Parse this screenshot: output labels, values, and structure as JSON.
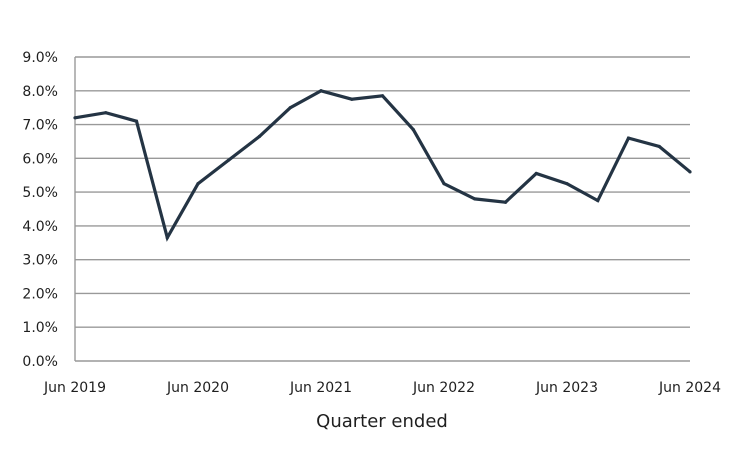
{
  "chart_data": {
    "type": "line",
    "title": "",
    "xlabel": "Quarter ended",
    "ylabel": "",
    "ylim": [
      0,
      9
    ],
    "grid": true,
    "legend": "none",
    "line_color": "#243444",
    "grid_color": "#999999",
    "y_ticks": [
      "0.0%",
      "1.0%",
      "2.0%",
      "3.0%",
      "4.0%",
      "5.0%",
      "6.0%",
      "7.0%",
      "8.0%",
      "9.0%"
    ],
    "x_ticks": [
      "Jun 2019",
      "Jun 2020",
      "Jun 2021",
      "Jun 2022",
      "Jun 2023",
      "Jun 2024"
    ],
    "categories": [
      "Jun 2019",
      "Sep 2019",
      "Dec 2019",
      "Mar 2020",
      "Jun 2020",
      "Sep 2020",
      "Dec 2020",
      "Mar 2021",
      "Jun 2021",
      "Sep 2021",
      "Dec 2021",
      "Mar 2022",
      "Jun 2022",
      "Sep 2022",
      "Dec 2022",
      "Mar 2023",
      "Jun 2023",
      "Sep 2023",
      "Dec 2023",
      "Mar 2024",
      "Jun 2024"
    ],
    "values": [
      7.2,
      7.35,
      7.1,
      3.65,
      5.25,
      5.95,
      6.65,
      7.5,
      8.0,
      7.75,
      7.85,
      6.85,
      5.25,
      4.8,
      4.7,
      5.55,
      5.25,
      4.75,
      6.6,
      6.35,
      5.6
    ]
  }
}
